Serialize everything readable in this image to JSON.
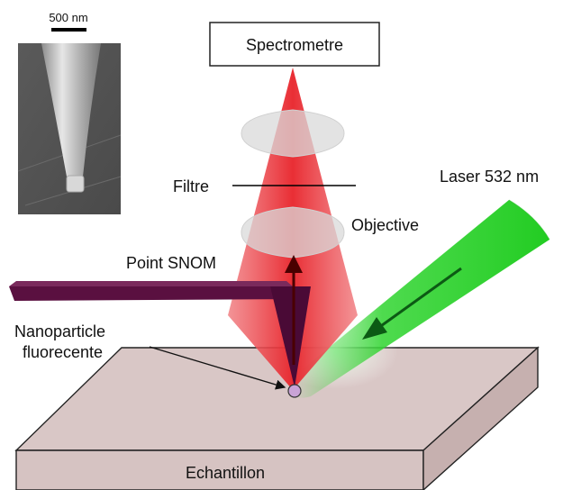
{
  "labels": {
    "spectrometre": "Spectrometre",
    "filtre": "Filtre",
    "objective": "Objective",
    "laser": "Laser 532 nm",
    "point_snom": "Point SNOM",
    "nanoparticle_line1": "Nanoparticle",
    "nanoparticle_line2": "fluorecente",
    "echantillon": "Echantillon",
    "scale_bar": "500 nm"
  },
  "colors": {
    "red_beam": "#e8232a",
    "green_beam": "#2fd42f",
    "tip_arm": "#5a1040",
    "sample_top": "#d9c7c6",
    "sample_side": "#cbb6b5",
    "particle": "#c9a3d6",
    "arrow_green": "#0c5a14",
    "arrow_red": "#5a0000"
  }
}
